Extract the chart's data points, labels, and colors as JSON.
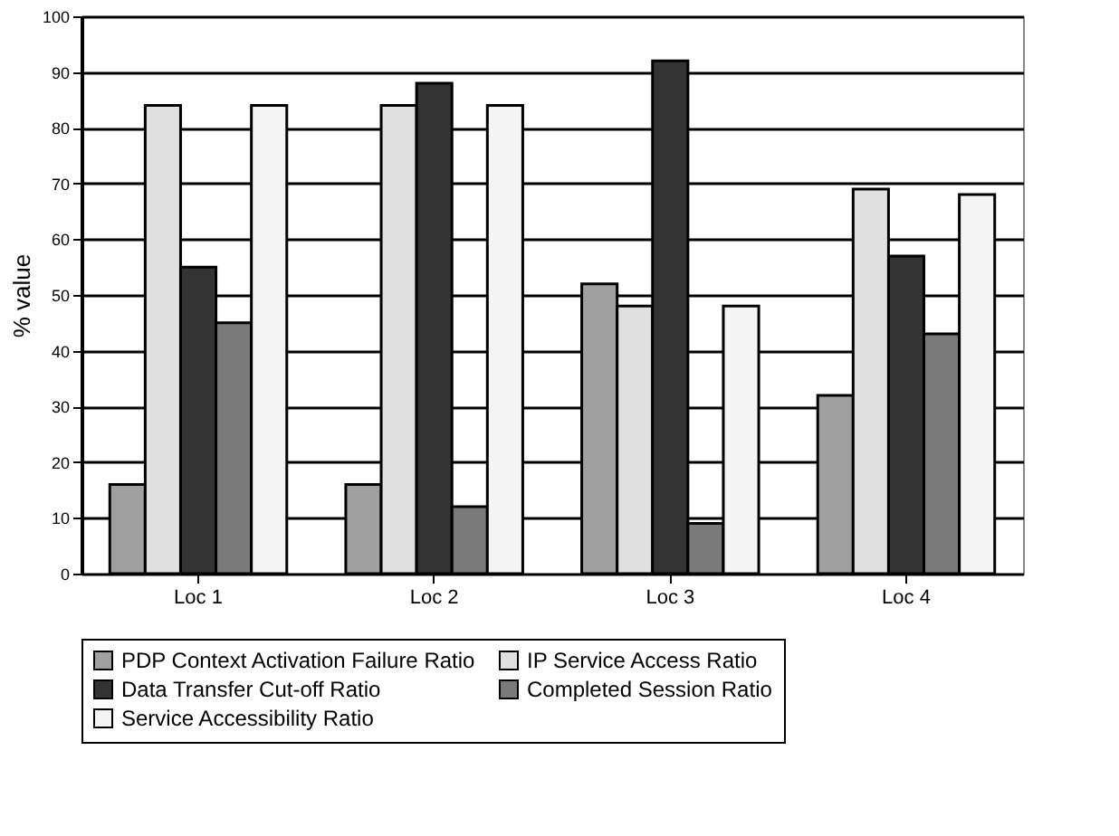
{
  "chart_data": {
    "type": "bar",
    "ylabel": "% value",
    "categories": [
      "Loc 1",
      "Loc 2",
      "Loc 3",
      "Loc 4"
    ],
    "series": [
      {
        "name": "PDP Context Activation Failure Ratio",
        "color": "#a0a0a0",
        "values": [
          16,
          16,
          52,
          32
        ]
      },
      {
        "name": "IP Service Access Ratio",
        "color": "#e0e0e0",
        "values": [
          84,
          84,
          48,
          69
        ]
      },
      {
        "name": "Data Transfer Cut-off Ratio",
        "color": "#333333",
        "values": [
          55,
          88,
          92,
          57
        ]
      },
      {
        "name": "Completed Session Ratio",
        "color": "#7a7a7a",
        "values": [
          45,
          12,
          9,
          43
        ]
      },
      {
        "name": "Service Accessibility Ratio",
        "color": "#f4f4f4",
        "values": [
          84,
          84,
          48,
          68
        ]
      }
    ],
    "ylim": [
      0,
      100
    ],
    "yticks": [
      0,
      10,
      20,
      30,
      40,
      50,
      60,
      70,
      80,
      90,
      100
    ],
    "grid": "y",
    "legend": "bottom"
  }
}
